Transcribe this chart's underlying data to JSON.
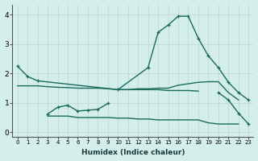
{
  "xlabel": "Humidex (Indice chaleur)",
  "bg_color": "#d4eeec",
  "grid_color": "#c4dcda",
  "line_color": "#1a6b5a",
  "x_ticks": [
    0,
    1,
    2,
    3,
    4,
    5,
    6,
    7,
    8,
    9,
    10,
    11,
    12,
    13,
    14,
    15,
    16,
    17,
    18,
    19,
    20,
    21,
    22,
    23
  ],
  "ylim": [
    -0.15,
    4.35
  ],
  "xlim": [
    -0.5,
    23.5
  ],
  "series": [
    {
      "x": [
        0,
        1,
        2,
        10,
        13,
        14,
        15,
        16,
        17,
        18,
        19,
        20,
        21,
        22,
        23
      ],
      "y": [
        2.25,
        1.9,
        1.75,
        1.45,
        2.2,
        3.4,
        3.65,
        3.95,
        3.95,
        3.2,
        2.6,
        2.2,
        1.7,
        1.35,
        1.1
      ],
      "marker": true,
      "lw": 1.0
    },
    {
      "x": [
        0,
        1,
        2,
        3,
        4,
        5,
        6,
        7,
        8,
        9,
        10,
        11,
        12,
        13,
        14,
        15,
        16,
        17,
        18
      ],
      "y": [
        1.58,
        1.58,
        1.58,
        1.55,
        1.53,
        1.52,
        1.5,
        1.5,
        1.5,
        1.48,
        1.45,
        1.45,
        1.45,
        1.45,
        1.45,
        1.42,
        1.42,
        1.42,
        1.4
      ],
      "marker": false,
      "lw": 1.0
    },
    {
      "x": [
        10,
        11,
        12,
        13,
        14,
        15,
        16,
        17,
        18,
        19,
        20,
        21,
        22
      ],
      "y": [
        1.45,
        1.45,
        1.48,
        1.48,
        1.5,
        1.5,
        1.6,
        1.65,
        1.7,
        1.72,
        1.72,
        1.35,
        1.1
      ],
      "marker": false,
      "lw": 1.0
    },
    {
      "x": [
        3,
        4,
        5,
        6,
        7,
        8,
        9
      ],
      "y": [
        0.62,
        0.85,
        0.92,
        0.72,
        0.75,
        0.78,
        0.98
      ],
      "marker": true,
      "lw": 1.0
    },
    {
      "x": [
        3,
        4,
        5,
        6,
        7,
        8,
        9,
        10,
        11,
        12,
        13,
        14,
        15,
        16,
        17,
        18,
        19,
        20,
        21,
        22
      ],
      "y": [
        0.55,
        0.55,
        0.55,
        0.5,
        0.5,
        0.5,
        0.5,
        0.48,
        0.48,
        0.45,
        0.45,
        0.42,
        0.42,
        0.42,
        0.42,
        0.42,
        0.32,
        0.28,
        0.28,
        0.28
      ],
      "marker": false,
      "lw": 1.0
    },
    {
      "x": [
        20,
        21,
        22,
        23
      ],
      "y": [
        1.35,
        1.1,
        0.65,
        0.28
      ],
      "marker": true,
      "lw": 1.0
    }
  ]
}
